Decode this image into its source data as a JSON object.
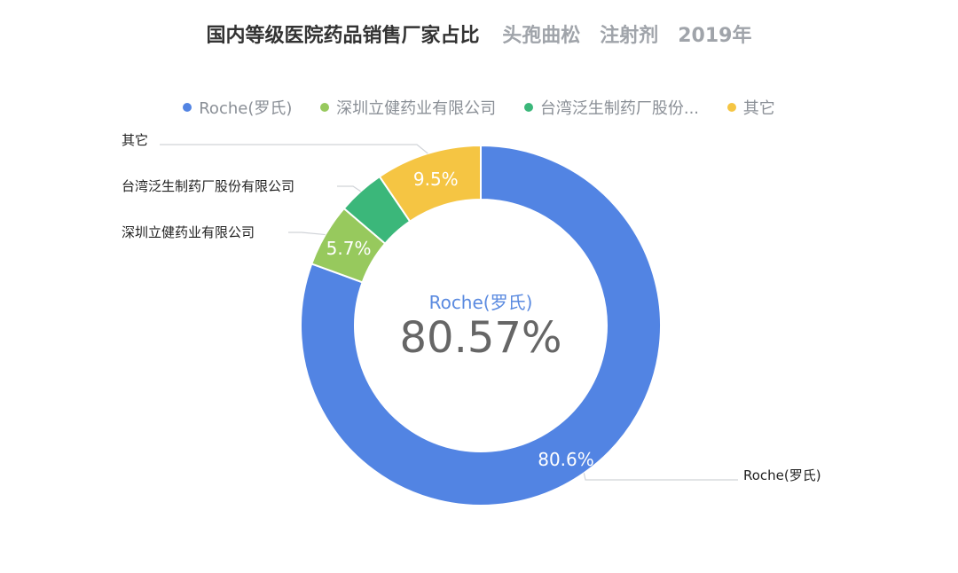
{
  "title": {
    "main": "国内等级医院药品销售厂家占比",
    "drug": "头孢曲松",
    "form": "注射剂",
    "year": "2019年"
  },
  "legend": [
    {
      "label": "Roche(罗氏)",
      "color": "#5284e3"
    },
    {
      "label": "深圳立健药业有限公司",
      "color": "#97c95d"
    },
    {
      "label": "台湾泛生制药厂股份...",
      "color": "#3bb77a"
    },
    {
      "label": "其它",
      "color": "#f5c543"
    }
  ],
  "center": {
    "name": "Roche(罗氏)",
    "value": "80.57%"
  },
  "chart_data": {
    "type": "pie",
    "donut": true,
    "categories": [
      "Roche(罗氏)",
      "深圳立健药业有限公司",
      "台湾泛生制药厂股份有限公司",
      "其它"
    ],
    "values": [
      80.57,
      5.7,
      4.23,
      9.5
    ],
    "slice_labels": [
      "80.6%",
      "5.7%",
      "",
      "9.5%"
    ],
    "colors": [
      "#5284e3",
      "#97c95d",
      "#3bb77a",
      "#f5c543"
    ],
    "legend_position": "top"
  }
}
